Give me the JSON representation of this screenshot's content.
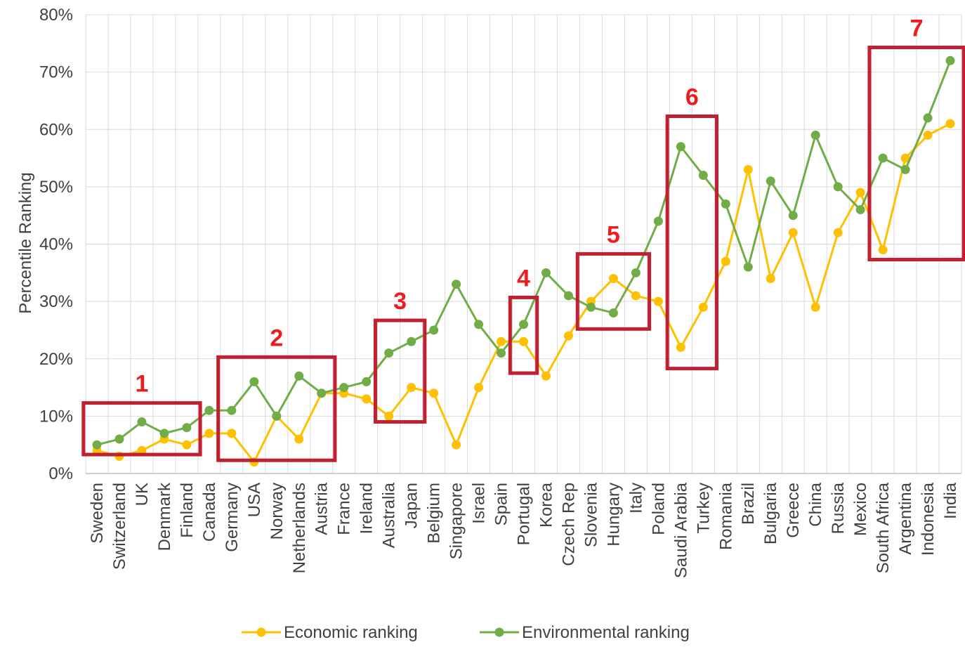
{
  "chart_data": {
    "type": "line",
    "title": "",
    "xlabel": "",
    "ylabel": "Percentile Ranking",
    "ylim": [
      0,
      80
    ],
    "yticks": [
      "0%",
      "10%",
      "20%",
      "30%",
      "40%",
      "50%",
      "60%",
      "70%",
      "80%"
    ],
    "grid": true,
    "legend_position": "bottom",
    "categories": [
      "Sweden",
      "Switzerland",
      "UK",
      "Denmark",
      "Finland",
      "Canada",
      "Germany",
      "USA",
      "Norway",
      "Netherlands",
      "Austria",
      "France",
      "Ireland",
      "Australia",
      "Japan",
      "Belgium",
      "Singapore",
      "Israel",
      "Spain",
      "Portugal",
      "Korea",
      "Czech Rep",
      "Slovenia",
      "Hungary",
      "Italy",
      "Poland",
      "Saudi Arabia",
      "Turkey",
      "Romania",
      "Brazil",
      "Bulgaria",
      "Greece",
      "China",
      "Russia",
      "Mexico",
      "South Africa",
      "Argentina",
      "Indonesia",
      "India"
    ],
    "series": [
      {
        "name": "Economic ranking",
        "color": "#ffc000",
        "values": [
          4,
          3,
          4,
          6,
          5,
          7,
          7,
          2,
          10,
          6,
          14,
          14,
          13,
          10,
          15,
          14,
          5,
          15,
          23,
          23,
          17,
          24,
          30,
          34,
          31,
          30,
          22,
          29,
          37,
          53,
          34,
          42,
          29,
          42,
          49,
          39,
          55,
          59,
          61
        ]
      },
      {
        "name": "Environmental ranking",
        "color": "#70ad47",
        "values": [
          5,
          6,
          9,
          7,
          8,
          11,
          11,
          16,
          10,
          17,
          14,
          15,
          16,
          21,
          23,
          25,
          33,
          26,
          21,
          26,
          35,
          31,
          29,
          28,
          35,
          44,
          57,
          52,
          47,
          36,
          51,
          45,
          59,
          50,
          46,
          55,
          53,
          62,
          72
        ]
      }
    ],
    "annotations": [
      {
        "label": "1",
        "from": "Sweden",
        "to": "Finland",
        "ymin": 3.3,
        "ymax": 12.3
      },
      {
        "label": "2",
        "from": "Germany",
        "to": "Austria",
        "ymin": 2.3,
        "ymax": 20.3
      },
      {
        "label": "3",
        "from": "Australia",
        "to": "Japan",
        "ymin": 9,
        "ymax": 26.7
      },
      {
        "label": "4",
        "from": "Portugal",
        "to": "Portugal",
        "ymin": 17.5,
        "ymax": 30.7
      },
      {
        "label": "5",
        "from": "Slovenia",
        "to": "Italy",
        "ymin": 25.2,
        "ymax": 38.3
      },
      {
        "label": "6",
        "from": "Saudi Arabia",
        "to": "Turkey",
        "ymin": 18.3,
        "ymax": 62.3
      },
      {
        "label": "7",
        "from": "South Africa",
        "to": "India",
        "ymin": 37.3,
        "ymax": 74.3
      }
    ],
    "annotation_color": "#c0202f"
  }
}
